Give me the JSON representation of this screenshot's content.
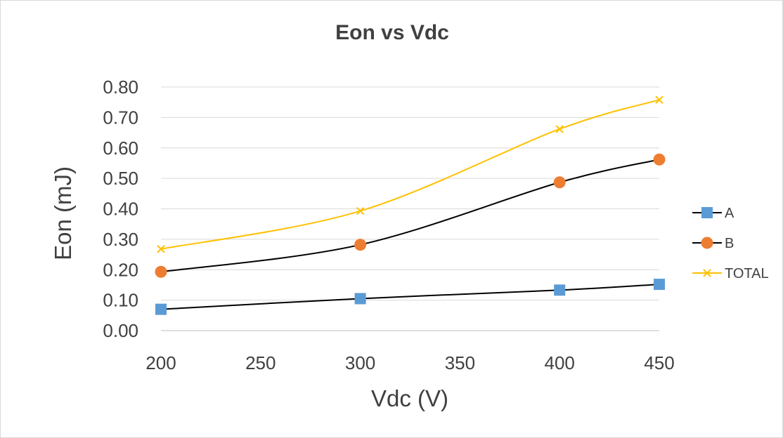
{
  "chart_data": {
    "type": "line",
    "title": "Eon vs Vdc",
    "xlabel": "Vdc (V)",
    "ylabel": "Eon (mJ)",
    "xlim": [
      200,
      450
    ],
    "ylim": [
      0,
      0.8
    ],
    "x_ticks": [
      "200",
      "250",
      "300",
      "350",
      "400",
      "450"
    ],
    "y_ticks": [
      "0.00",
      "0.10",
      "0.20",
      "0.30",
      "0.40",
      "0.50",
      "0.60",
      "0.70",
      "0.80"
    ],
    "grid": "horizontal",
    "legend_position": "right",
    "x": [
      200,
      300,
      400,
      450
    ],
    "series": [
      {
        "name": "A",
        "values": [
          0.07,
          0.105,
          0.133,
          0.152
        ],
        "line_color": "#000000",
        "marker": "square",
        "marker_color": "#5b9bd5"
      },
      {
        "name": "B",
        "values": [
          0.193,
          0.282,
          0.487,
          0.562
        ],
        "line_color": "#000000",
        "marker": "circle",
        "marker_color": "#ed7d31"
      },
      {
        "name": "TOTAL",
        "values": [
          0.268,
          0.393,
          0.662,
          0.758
        ],
        "line_color": "#ffc000",
        "marker": "x",
        "marker_color": "#ffc000"
      }
    ]
  }
}
